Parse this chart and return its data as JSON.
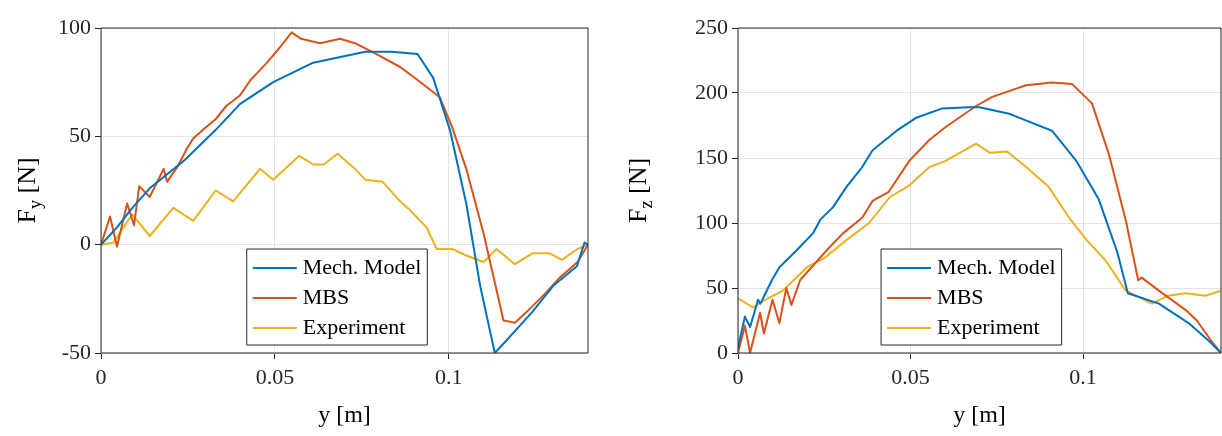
{
  "chart_data": [
    {
      "type": "line",
      "xlabel": "y [m]",
      "ylabel": "F$_{y}$ [N]",
      "xlim": [
        0,
        0.14
      ],
      "ylim": [
        -50,
        100
      ],
      "xticks": [
        0,
        0.05,
        0.1
      ],
      "yticks": [
        -50,
        0,
        50,
        100
      ],
      "grid": true,
      "legend": "bottom right",
      "line_style": "solid",
      "marker": "none",
      "series": [
        {
          "name": "Mech. Model",
          "color": "#0072bd",
          "x": [
            0,
            0.0006,
            0.0046,
            0.009,
            0.014,
            0.024,
            0.033,
            0.04,
            0.0495,
            0.061,
            0.076,
            0.0835,
            0.091,
            0.0955,
            0.1003,
            0.105,
            0.109,
            0.1132,
            0.1167,
            0.124,
            0.13,
            0.1368,
            0.139,
            0.14
          ],
          "values": [
            0,
            1,
            8,
            17,
            26,
            39,
            53,
            65,
            75,
            84,
            89,
            89,
            88,
            77,
            53,
            19,
            -19,
            -50,
            -44,
            -31,
            -19,
            -10,
            1,
            0
          ]
        },
        {
          "name": "MBS",
          "color": "#d95319",
          "x": [
            0,
            0.0026,
            0.0046,
            0.0075,
            0.0095,
            0.011,
            0.014,
            0.018,
            0.019,
            0.022,
            0.0246,
            0.0265,
            0.03,
            0.033,
            0.036,
            0.04,
            0.043,
            0.0477,
            0.0514,
            0.0548,
            0.0575,
            0.063,
            0.0687,
            0.073,
            0.078,
            0.086,
            0.091,
            0.0974,
            0.101,
            0.105,
            0.11,
            0.1157,
            0.119,
            0.1224,
            0.128,
            0.132,
            0.137,
            0.14
          ],
          "values": [
            0,
            13,
            -1,
            19,
            9,
            27,
            22,
            35,
            29,
            36,
            44,
            49,
            54,
            58,
            64,
            69,
            76,
            84,
            91,
            98,
            95,
            93,
            95,
            93,
            89,
            82,
            76,
            68,
            54,
            35,
            5,
            -35,
            -36,
            -31,
            -22,
            -15,
            -8,
            0
          ]
        },
        {
          "name": "Experiment",
          "color": "#edb120",
          "x": [
            0,
            0.0036,
            0.009,
            0.014,
            0.0208,
            0.0265,
            0.033,
            0.038,
            0.0457,
            0.0495,
            0.057,
            0.061,
            0.064,
            0.068,
            0.073,
            0.076,
            0.081,
            0.086,
            0.0888,
            0.0936,
            0.0965,
            0.101,
            0.105,
            0.11,
            0.1137,
            0.119,
            0.124,
            0.129,
            0.1325,
            0.137,
            0.14
          ],
          "values": [
            0,
            1,
            14,
            4,
            17,
            11,
            25,
            20,
            35,
            30,
            41,
            37,
            37,
            42,
            35,
            30,
            29,
            20,
            16,
            8,
            -2,
            -2,
            -5,
            -8,
            -2,
            -9,
            -4,
            -4,
            -7,
            -2,
            0
          ]
        }
      ]
    },
    {
      "type": "line",
      "xlabel": "y [m]",
      "ylabel": "F$_{z}$ [N]",
      "xlim": [
        0,
        0.14
      ],
      "ylim": [
        0,
        250
      ],
      "xticks": [
        0,
        0.05,
        0.1
      ],
      "yticks": [
        0,
        50,
        100,
        150,
        200,
        250
      ],
      "grid": true,
      "legend": "bottom right",
      "line_style": "solid",
      "marker": "none",
      "series": [
        {
          "name": "Mech. Model",
          "color": "#0072bd",
          "x": [
            0,
            0.002,
            0.0035,
            0.0058,
            0.0065,
            0.0098,
            0.012,
            0.017,
            0.0217,
            0.024,
            0.0275,
            0.0315,
            0.036,
            0.039,
            0.046,
            0.0517,
            0.059,
            0.067,
            0.07,
            0.0786,
            0.091,
            0.098,
            0.1046,
            0.11,
            0.113,
            0.122,
            0.1306,
            0.137,
            0.14
          ],
          "values": [
            4,
            28,
            20,
            41,
            38,
            56,
            66,
            79,
            92,
            103,
            112,
            128,
            143,
            156,
            171,
            181,
            188,
            189,
            189,
            184,
            171,
            148,
            118,
            77,
            46,
            38,
            23,
            8,
            0
          ]
        },
        {
          "name": "MBS",
          "color": "#d95319",
          "x": [
            0,
            0.002,
            0.0035,
            0.0064,
            0.0075,
            0.01,
            0.012,
            0.014,
            0.0155,
            0.018,
            0.021,
            0.0257,
            0.0304,
            0.036,
            0.039,
            0.0437,
            0.0497,
            0.0555,
            0.0603,
            0.069,
            0.0737,
            0.0835,
            0.091,
            0.0968,
            0.1026,
            0.1075,
            0.1124,
            0.116,
            0.117,
            0.122,
            0.1298,
            0.133,
            0.137,
            0.14
          ],
          "values": [
            0,
            21,
            0,
            31,
            15,
            41,
            23,
            50,
            37,
            56,
            65,
            79,
            92,
            104,
            117,
            124,
            148,
            164,
            174,
            190,
            197,
            206,
            208,
            207,
            192,
            153,
            102,
            56,
            58,
            48,
            33,
            25,
            10,
            0
          ]
        },
        {
          "name": "Experiment",
          "color": "#edb120",
          "x": [
            0,
            0.0043,
            0.008,
            0.013,
            0.02,
            0.025,
            0.0315,
            0.038,
            0.044,
            0.0497,
            0.0555,
            0.0603,
            0.069,
            0.073,
            0.078,
            0.0835,
            0.09,
            0.096,
            0.101,
            0.1066,
            0.1124,
            0.12,
            0.1245,
            0.1298,
            0.1355,
            0.14
          ],
          "values": [
            42,
            35,
            41,
            48,
            66,
            73,
            87,
            100,
            120,
            129,
            143,
            148,
            161,
            154,
            155,
            143,
            128,
            104,
            87,
            71,
            48,
            38,
            44,
            46,
            44,
            48
          ]
        }
      ]
    }
  ]
}
